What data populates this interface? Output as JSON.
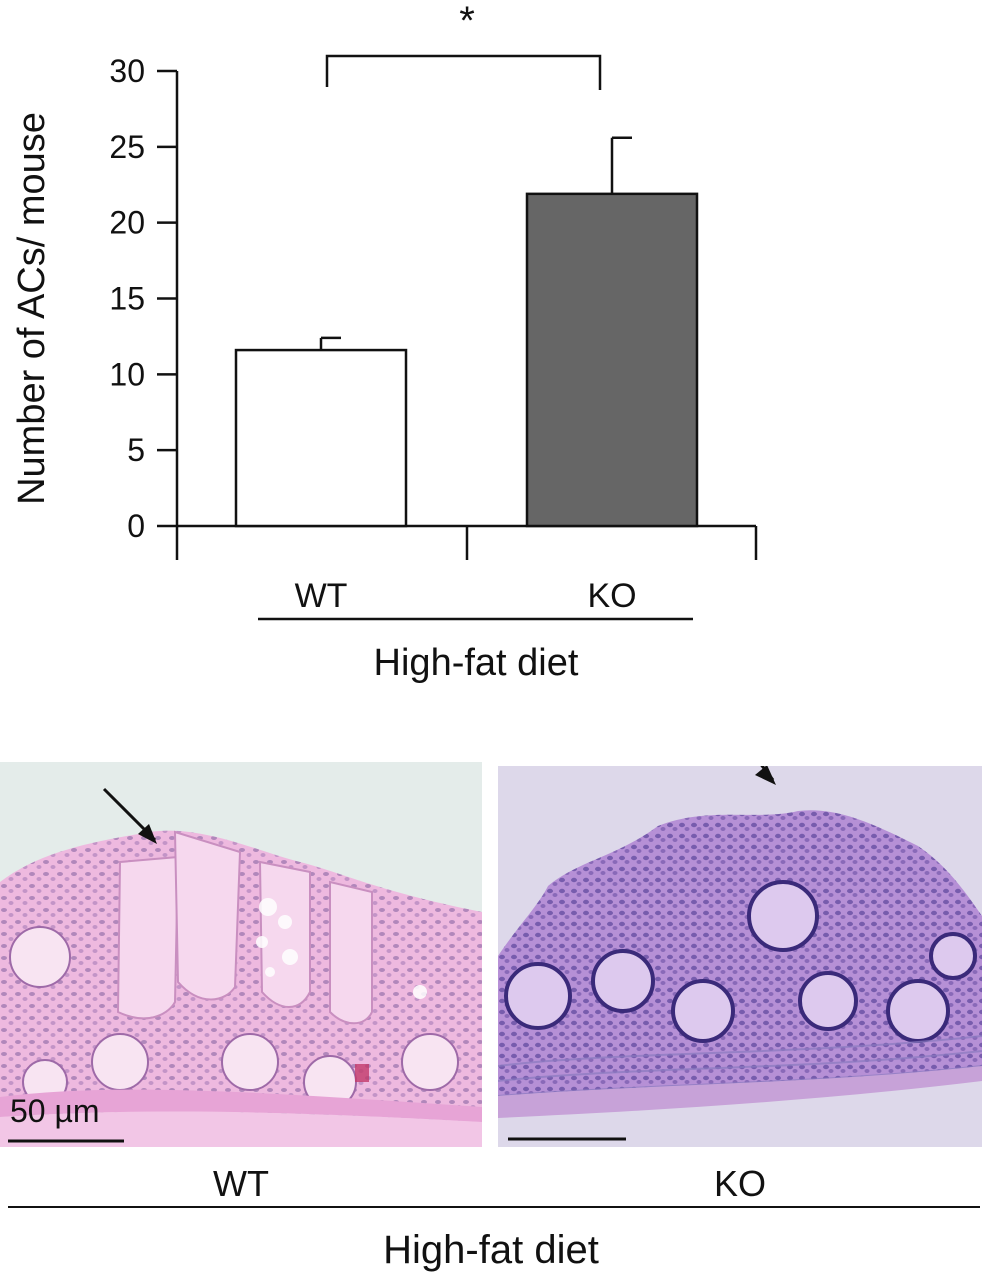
{
  "chart_data": {
    "type": "bar",
    "categories": [
      "WT",
      "KO"
    ],
    "values": [
      11.6,
      21.9
    ],
    "errors": [
      0.8,
      3.7
    ],
    "colors": [
      "#ffffff",
      "#666666"
    ],
    "ylabel": "Number of ACs/ mouse",
    "ylim": [
      0,
      30
    ],
    "yticks": [
      0,
      5,
      10,
      15,
      20,
      25,
      30
    ],
    "group_label": "High-fat diet",
    "significance": "*"
  },
  "micrographs": {
    "wt_label": "WT",
    "ko_label": "KO",
    "group_label": "High-fat diet",
    "scale_bar": "50 µm"
  }
}
